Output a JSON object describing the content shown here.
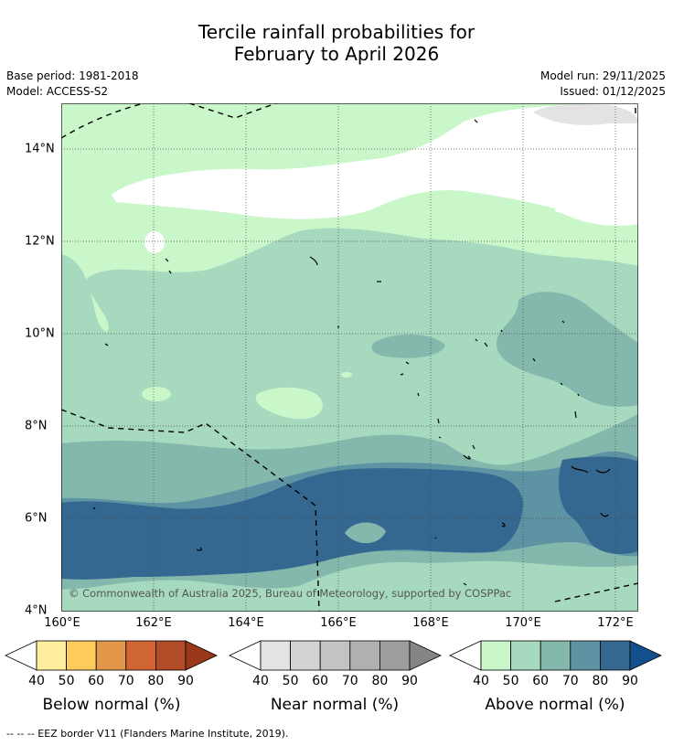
{
  "title_line1": "Tercile rainfall probabilities for",
  "title_line2": "February to April 2026",
  "base_period": "Base period: 1981-2018",
  "model": "Model: ACCESS-S2",
  "model_run": "Model run: 29/11/2025",
  "issued": "Issued: 01/12/2025",
  "map": {
    "x_ticks": [
      "160°E",
      "162°E",
      "164°E",
      "166°E",
      "168°E",
      "170°E",
      "172°E"
    ],
    "y_ticks": [
      "14°N",
      "12°N",
      "10°N",
      "8°N",
      "6°N",
      "4°N"
    ],
    "copyright": "© Commonwealth of Australia 2025, Bureau of Meteorology, supported by COSPPac"
  },
  "legend": {
    "tick_labels": [
      "40",
      "50",
      "60",
      "70",
      "80",
      "90"
    ],
    "below": {
      "title": "Below normal (%)",
      "colors": [
        "#ffeda0",
        "#fecb5c",
        "#e2974a",
        "#cf6434",
        "#b14c28"
      ],
      "extend": "#99381a"
    },
    "near": {
      "title": "Near normal (%)",
      "colors": [
        "#e3e3e3",
        "#d3d3d3",
        "#c3c3c3",
        "#b0b0b0",
        "#9d9d9d"
      ],
      "extend": "#858585"
    },
    "above": {
      "title": "Above normal (%)",
      "colors": [
        "#c9f7c9",
        "#a6d9bd",
        "#84b8ad",
        "#5e93a4",
        "#346890"
      ],
      "extend": "#124f8d"
    },
    "footnote": "--  --  -- EEZ border V11 (Flanders Marine Institute, 2019)."
  }
}
